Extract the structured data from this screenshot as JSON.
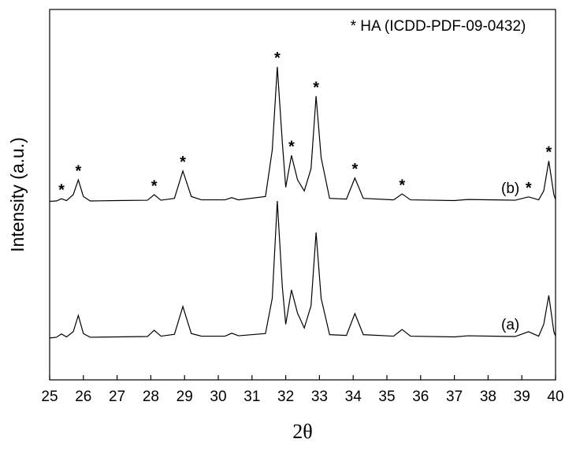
{
  "chart_data": {
    "type": "line",
    "xlabel": "2θ",
    "ylabel": "Intensity (a.u.)",
    "annotation": "* HA (ICDD-PDF-09-0432)",
    "xlim": [
      25,
      40
    ],
    "xticks": [
      25,
      26,
      27,
      28,
      29,
      30,
      31,
      32,
      33,
      34,
      35,
      36,
      37,
      38,
      39,
      40
    ],
    "ylim": [
      0,
      100
    ],
    "x": [
      25,
      25.2,
      25.35,
      25.5,
      25.7,
      25.85,
      26.0,
      26.2,
      27,
      27.9,
      28.1,
      28.3,
      28.7,
      28.95,
      29.2,
      29.5,
      30.2,
      30.4,
      30.6,
      31.4,
      31.6,
      31.75,
      31.9,
      32.0,
      32.17,
      32.35,
      32.55,
      32.75,
      32.9,
      33.05,
      33.3,
      33.8,
      34.05,
      34.3,
      35.2,
      35.45,
      35.7,
      37,
      37.4,
      38.8,
      39.2,
      39.5,
      39.65,
      39.8,
      39.95,
      40
    ],
    "series": [
      {
        "name": "(a)",
        "color": "#000000",
        "values": [
          11.3,
          11.5,
          12.4,
          11.6,
          13,
          17.4,
          12.5,
          11.5,
          11.6,
          11.7,
          13.4,
          11.8,
          12.3,
          19.8,
          12.5,
          11.8,
          11.8,
          12.6,
          11.9,
          12.5,
          22,
          48.3,
          25,
          15,
          24.3,
          18,
          14,
          20,
          39.8,
          22,
          12.2,
          12,
          17.9,
          12.2,
          11.8,
          13.6,
          11.8,
          11.6,
          11.9,
          11.7,
          13,
          11.8,
          15,
          22.8,
          13,
          11.8
        ]
      },
      {
        "name": "(b)",
        "color": "#000000",
        "values": [
          48.2,
          48.3,
          48.9,
          48.4,
          50,
          54,
          49.5,
          48.3,
          48.4,
          48.5,
          50,
          48.5,
          49,
          56.4,
          49.5,
          48.6,
          48.6,
          49.2,
          48.6,
          49.5,
          62,
          84.5,
          64,
          52,
          60.6,
          54,
          51,
          57,
          76.6,
          60,
          49,
          48.8,
          54.5,
          49,
          48.6,
          50.2,
          48.6,
          48.4,
          48.7,
          48.5,
          49.4,
          48.6,
          51,
          59.1,
          50,
          48.7
        ]
      }
    ],
    "peak_markers": {
      "label": "*",
      "x": [
        25.35,
        25.85,
        28.1,
        28.95,
        31.75,
        32.17,
        32.9,
        34.05,
        35.45,
        39.2,
        39.8
      ]
    }
  }
}
